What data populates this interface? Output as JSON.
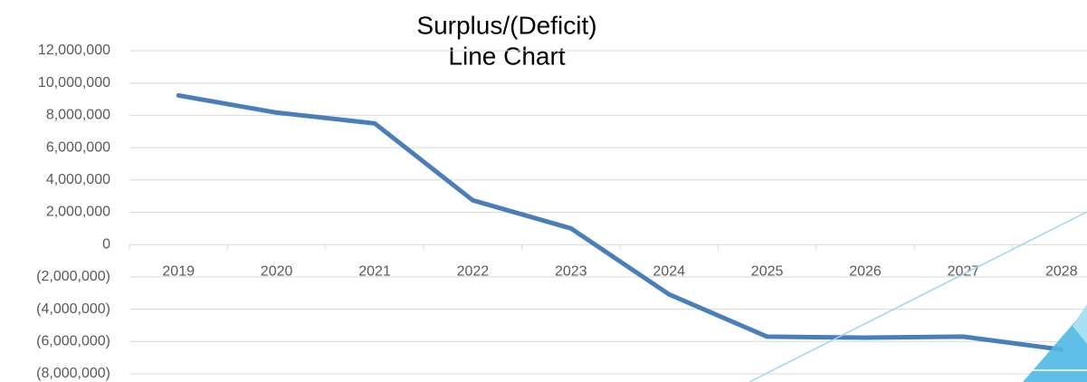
{
  "chart_data": {
    "type": "line",
    "title": [
      "Surplus/(Deficit)",
      "Line Chart"
    ],
    "categories": [
      "2019",
      "2020",
      "2021",
      "2022",
      "2023",
      "2024",
      "2025",
      "2026",
      "2027",
      "2028"
    ],
    "values": [
      9230000,
      8170000,
      7500000,
      2740000,
      1000000,
      -3080000,
      -5700000,
      -5760000,
      -5700000,
      -6500000
    ],
    "color": "#4a7ebb",
    "ylim": [
      -8000000,
      12000000
    ],
    "yticks": [
      {
        "value": -8000000,
        "label": "(8,000,000)"
      },
      {
        "value": -6000000,
        "label": "(6,000,000)"
      },
      {
        "value": -4000000,
        "label": "(4,000,000)"
      },
      {
        "value": -2000000,
        "label": "(2,000,000)"
      },
      0,
      {
        "value": 2000000,
        "label": "2,000,000"
      },
      {
        "value": 4000000,
        "label": "4,000,000"
      },
      {
        "value": 6000000,
        "label": "6,000,000"
      },
      {
        "value": 8000000,
        "label": "8,000,000"
      },
      {
        "value": 10000000,
        "label": "10,000,000"
      },
      {
        "value": 12000000,
        "label": "12,000,000"
      }
    ],
    "grid": true
  }
}
